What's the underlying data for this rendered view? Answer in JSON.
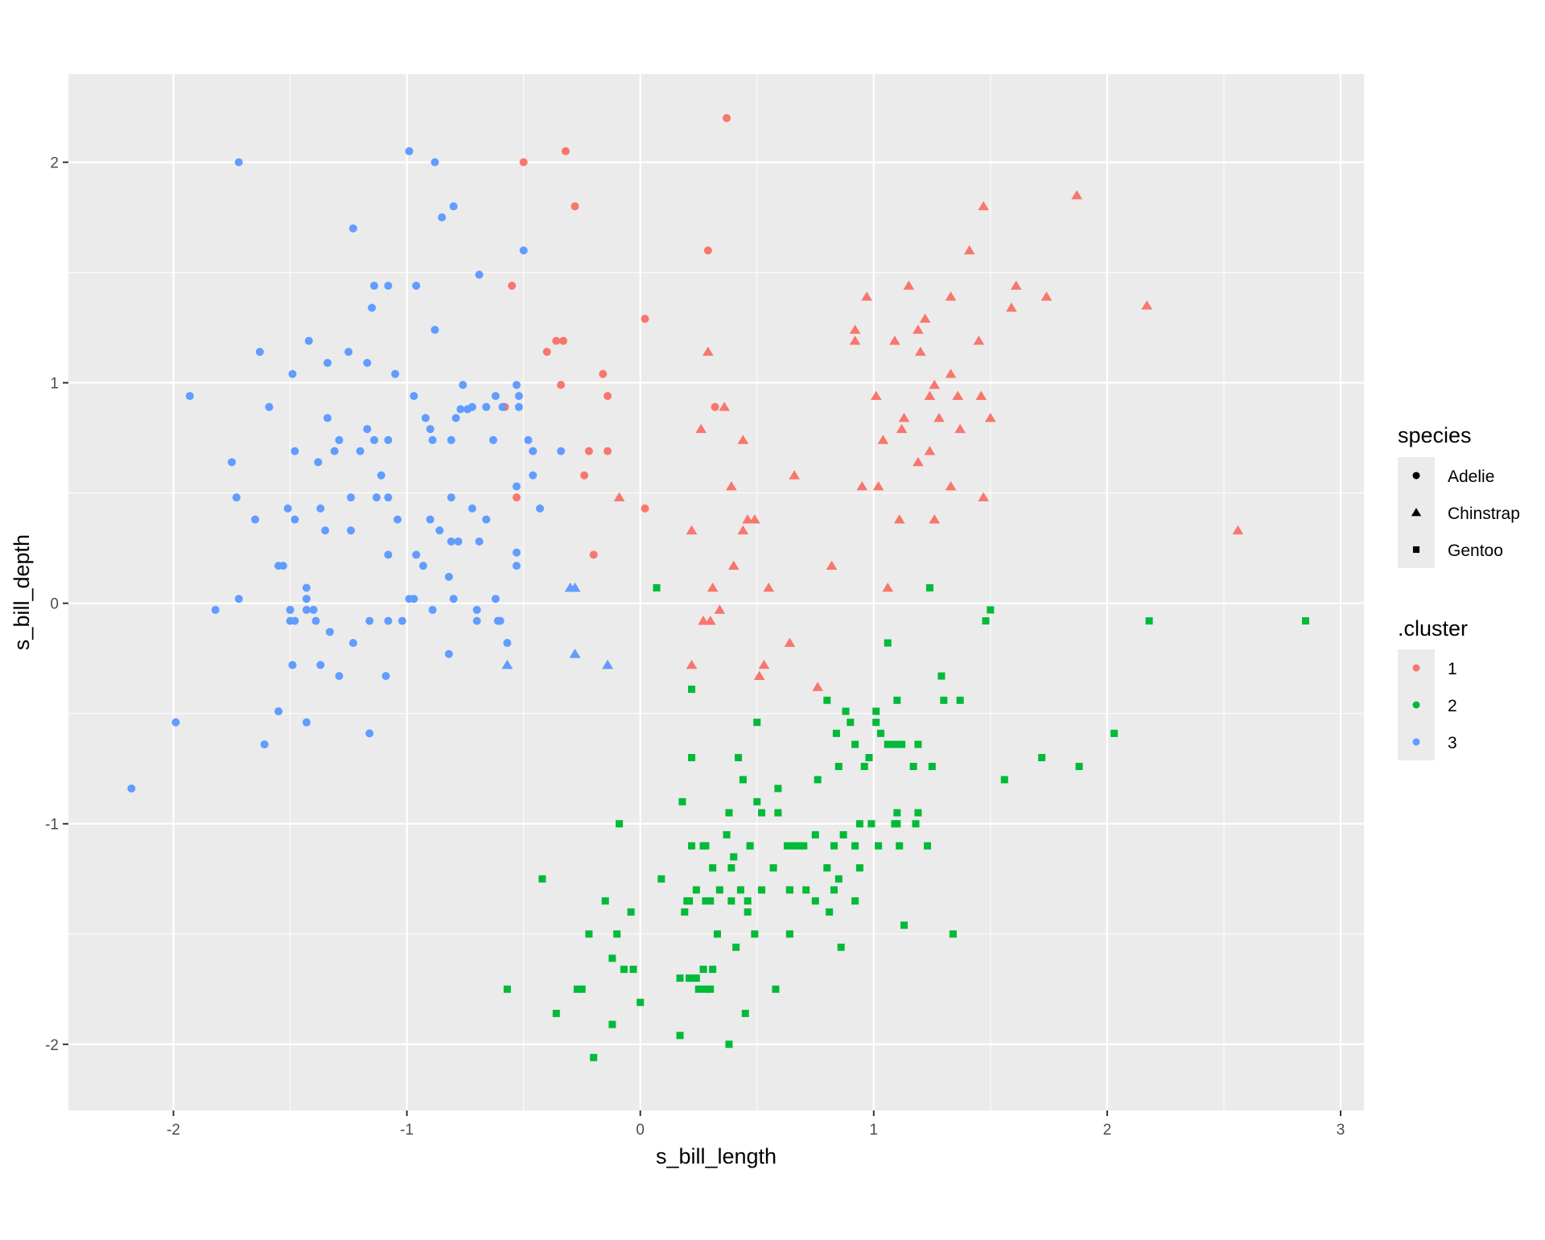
{
  "chart_data": {
    "type": "scatter",
    "xlabel": "s_bill_length",
    "ylabel": "s_bill_depth",
    "xlim": [
      -2.45,
      3.1
    ],
    "ylim": [
      -2.3,
      2.4
    ],
    "xticks": [
      -2,
      -1,
      0,
      1,
      2,
      3
    ],
    "yticks": [
      -2,
      -1,
      0,
      1,
      2
    ],
    "x_tick_labels": [
      "-2",
      "-1",
      "0",
      "1",
      "2",
      "3"
    ],
    "y_tick_labels": [
      "-2",
      "-1",
      "0",
      "1",
      "2"
    ],
    "grid": true,
    "legend_position": "right",
    "legends": [
      {
        "title": "species",
        "aesthetic": "shape",
        "entries": [
          {
            "label": "Adelie",
            "shape": "circle"
          },
          {
            "label": "Chinstrap",
            "shape": "triangle"
          },
          {
            "label": "Gentoo",
            "shape": "square"
          }
        ]
      },
      {
        "title": ".cluster",
        "aesthetic": "color",
        "entries": [
          {
            "label": "1",
            "color": "#F8766D"
          },
          {
            "label": "2",
            "color": "#00BA38"
          },
          {
            "label": "3",
            "color": "#619CFF"
          }
        ]
      }
    ],
    "series": [
      {
        "species": "Adelie",
        "cluster": "1",
        "shape": "circle",
        "color": "#F8766D",
        "x": [
          0.37,
          -0.5,
          -0.32,
          -0.28,
          0.29,
          -0.55,
          0.02,
          -0.4,
          -0.36,
          -0.33,
          -0.16,
          -0.14,
          -0.34,
          -0.58,
          -0.46,
          -0.53,
          -0.14,
          -0.22,
          -0.24,
          0.32,
          0.02,
          -0.2
        ],
        "y": [
          2.2,
          2.0,
          2.05,
          1.8,
          1.6,
          1.44,
          1.29,
          1.14,
          1.19,
          1.19,
          1.04,
          0.94,
          0.99,
          0.89,
          0.69,
          0.48,
          0.69,
          0.69,
          0.58,
          0.89,
          0.43,
          0.22
        ]
      },
      {
        "species": "Chinstrap",
        "cluster": "1",
        "shape": "triangle",
        "color": "#F8766D",
        "x": [
          1.87,
          1.47,
          1.41,
          2.17,
          1.15,
          0.97,
          1.33,
          1.61,
          1.74,
          1.59,
          0.92,
          0.92,
          1.09,
          1.22,
          1.19,
          1.2,
          1.45,
          0.29,
          1.33,
          1.26,
          1.01,
          1.24,
          1.36,
          1.46,
          1.13,
          1.12,
          1.28,
          1.37,
          1.5,
          1.04,
          1.24,
          0.36,
          0.26,
          0.44,
          1.19,
          0.39,
          0.66,
          0.95,
          1.02,
          1.33,
          1.47,
          -0.09,
          0.46,
          0.49,
          0.44,
          1.11,
          1.26,
          0.22,
          2.56,
          0.4,
          0.82,
          0.31,
          0.55,
          1.06,
          0.34,
          0.27,
          0.3,
          0.64,
          0.22,
          0.53,
          0.51,
          0.76,
          -0.28,
          -0.3,
          -0.28,
          -0.14,
          -0.57
        ],
        "y": [
          1.85,
          1.8,
          1.6,
          1.35,
          1.44,
          1.39,
          1.39,
          1.44,
          1.39,
          1.34,
          1.24,
          1.19,
          1.19,
          1.29,
          1.24,
          1.14,
          1.19,
          1.14,
          1.04,
          0.99,
          0.94,
          0.94,
          0.94,
          0.94,
          0.84,
          0.79,
          0.84,
          0.79,
          0.84,
          0.74,
          0.69,
          0.89,
          0.79,
          0.74,
          0.64,
          0.53,
          0.58,
          0.53,
          0.53,
          0.53,
          0.48,
          0.48,
          0.38,
          0.38,
          0.33,
          0.38,
          0.38,
          0.33,
          0.33,
          0.17,
          0.17,
          0.07,
          0.07,
          0.07,
          -0.03,
          -0.08,
          -0.08,
          -0.18,
          -0.28,
          -0.28,
          -0.33,
          -0.38,
          0.07,
          0.07,
          -0.23,
          -0.28,
          -0.28
        ]
      },
      {
        "species": "Adelie",
        "cluster": "3",
        "shape": "circle",
        "color": "#619CFF",
        "x": [
          -1.72,
          -0.99,
          -0.88,
          -0.8,
          -0.85,
          -1.23,
          -0.5,
          -0.69,
          -1.14,
          -1.08,
          -0.96,
          -1.15,
          -0.88,
          -1.42,
          -1.63,
          -1.25,
          -1.17,
          -1.34,
          -1.49,
          -1.05,
          -1.93,
          -1.59,
          -0.97,
          -0.92,
          -0.9,
          -0.79,
          -0.62,
          -0.66,
          -0.59,
          -0.52,
          -0.53,
          -0.52,
          -0.76,
          -0.72,
          -1.34,
          -1.17,
          -1.14,
          -1.08,
          -1.29,
          -1.31,
          -1.38,
          -1.48,
          -1.2,
          -1.11,
          -0.89,
          -0.81,
          -0.63,
          -0.48,
          -0.46,
          -0.34,
          -1.75,
          -1.13,
          -1.24,
          -1.08,
          -1.04,
          -0.81,
          -0.86,
          -0.53,
          -0.46,
          -0.43,
          -1.73,
          -1.65,
          -1.51,
          -1.48,
          -1.37,
          -1.35,
          -1.24,
          -0.9,
          -0.72,
          -0.66,
          -0.81,
          -0.78,
          -0.69,
          -0.53,
          -1.53,
          -1.55,
          -1.08,
          -0.96,
          -0.93,
          -0.53,
          -0.82,
          -1.43,
          -1.43,
          -0.99,
          -0.97,
          -0.8,
          -0.62,
          -1.72,
          -1.82,
          -1.5,
          -1.48,
          -1.43,
          -1.4,
          -1.39,
          -0.89,
          -0.7,
          -0.61,
          -1.5,
          -1.33,
          -1.16,
          -1.08,
          -1.02,
          -0.7,
          -0.6,
          -0.57,
          -1.23,
          -0.82,
          -1.49,
          -1.37,
          -1.29,
          -1.09,
          -1.55,
          -1.43,
          -1.99,
          -1.16,
          -1.61,
          -2.18,
          -0.77,
          -0.74
        ],
        "y": [
          2.0,
          2.05,
          2.0,
          1.8,
          1.75,
          1.7,
          1.6,
          1.49,
          1.44,
          1.44,
          1.44,
          1.34,
          1.24,
          1.19,
          1.14,
          1.14,
          1.09,
          1.09,
          1.04,
          1.04,
          0.94,
          0.89,
          0.94,
          0.84,
          0.79,
          0.84,
          0.94,
          0.89,
          0.89,
          0.94,
          0.99,
          0.89,
          0.99,
          0.89,
          0.84,
          0.79,
          0.74,
          0.74,
          0.74,
          0.69,
          0.64,
          0.69,
          0.69,
          0.58,
          0.74,
          0.74,
          0.74,
          0.74,
          0.58,
          0.69,
          0.64,
          0.48,
          0.48,
          0.48,
          0.38,
          0.48,
          0.33,
          0.53,
          0.69,
          0.43,
          0.48,
          0.38,
          0.43,
          0.38,
          0.43,
          0.33,
          0.33,
          0.38,
          0.43,
          0.38,
          0.28,
          0.28,
          0.28,
          0.23,
          0.17,
          0.17,
          0.22,
          0.22,
          0.17,
          0.17,
          0.12,
          0.07,
          0.02,
          0.02,
          0.02,
          0.02,
          0.02,
          0.02,
          -0.03,
          -0.03,
          -0.08,
          -0.03,
          -0.03,
          -0.08,
          -0.03,
          -0.03,
          -0.08,
          -0.08,
          -0.13,
          -0.08,
          -0.08,
          -0.08,
          -0.08,
          -0.08,
          -0.18,
          -0.18,
          -0.23,
          -0.28,
          -0.28,
          -0.33,
          -0.33,
          -0.49,
          -0.54,
          -0.54,
          -0.59,
          -0.64,
          -0.84,
          0.88,
          0.88
        ]
      },
      {
        "species": "Chinstrap",
        "cluster": "3",
        "shape": "triangle",
        "color": "#619CFF",
        "x": [
          -0.28,
          -0.3,
          -0.28,
          -0.14,
          -0.57
        ],
        "y": [
          0.07,
          0.07,
          -0.23,
          -0.28,
          -0.28
        ]
      },
      {
        "species": "Gentoo",
        "cluster": "2",
        "shape": "square",
        "color": "#00BA38",
        "x": [
          0.07,
          1.24,
          1.5,
          1.48,
          2.18,
          2.85,
          1.06,
          1.29,
          0.22,
          1.3,
          1.37,
          0.8,
          1.1,
          0.88,
          1.01,
          0.9,
          0.84,
          1.01,
          0.92,
          1.03,
          2.03,
          0.5,
          1.06,
          1.09,
          1.12,
          1.19,
          0.98,
          0.22,
          0.42,
          0.96,
          1.17,
          1.25,
          1.72,
          1.88,
          0.44,
          0.76,
          0.59,
          0.85,
          1.56,
          0.18,
          0.5,
          0.52,
          0.59,
          0.38,
          0.99,
          1.09,
          1.19,
          1.18,
          1.1,
          1.1,
          0.94,
          0.87,
          0.83,
          0.75,
          0.47,
          0.28,
          0.37,
          0.63,
          0.66,
          0.68,
          0.7,
          0.92,
          1.02,
          1.11,
          1.23,
          0.22,
          0.27,
          0.47,
          0.4,
          0.39,
          0.31,
          0.57,
          0.8,
          0.94,
          0.09,
          -0.42,
          -0.09,
          0.43,
          0.71,
          0.85,
          0.34,
          0.52,
          0.46,
          0.3,
          0.21,
          0.24,
          0.28,
          0.64,
          0.75,
          0.83,
          0.92,
          0.64,
          1.13,
          -0.15,
          0.19,
          0.39,
          0.46,
          0.49,
          -0.22,
          -0.1,
          0.33,
          0.81,
          0.86,
          0.64,
          0.41,
          -0.12,
          -0.07,
          -0.03,
          0.27,
          0.31,
          0.17,
          0.21,
          0.24,
          0.3,
          0.58,
          1.34,
          -0.25,
          -0.27,
          -0.57,
          0.25,
          0.28,
          0.0,
          -0.36,
          0.45,
          -0.12,
          0.17,
          0.38,
          -0.2,
          0.2,
          -0.04,
          0.21
        ],
        "y": [
          0.07,
          0.07,
          -0.03,
          -0.08,
          -0.08,
          -0.08,
          -0.18,
          -0.33,
          -0.39,
          -0.44,
          -0.44,
          -0.44,
          -0.44,
          -0.49,
          -0.49,
          -0.54,
          -0.59,
          -0.54,
          -0.64,
          -0.59,
          -0.59,
          -0.54,
          -0.64,
          -0.64,
          -0.64,
          -0.64,
          -0.7,
          -0.7,
          -0.7,
          -0.74,
          -0.74,
          -0.74,
          -0.7,
          -0.74,
          -0.8,
          -0.8,
          -0.84,
          -0.74,
          -0.8,
          -0.9,
          -0.9,
          -0.95,
          -0.95,
          -0.95,
          -1.0,
          -1.0,
          -0.95,
          -1.0,
          -0.95,
          -1.0,
          -1.0,
          -1.05,
          -1.1,
          -1.05,
          -1.1,
          -1.1,
          -1.05,
          -1.1,
          -1.1,
          -1.1,
          -1.1,
          -1.1,
          -1.1,
          -1.1,
          -1.1,
          -1.1,
          -1.1,
          -1.1,
          -1.15,
          -1.2,
          -1.2,
          -1.2,
          -1.2,
          -1.2,
          -1.25,
          -1.25,
          -1.0,
          -1.3,
          -1.3,
          -1.25,
          -1.3,
          -1.3,
          -1.35,
          -1.35,
          -1.35,
          -1.3,
          -1.35,
          -1.3,
          -1.35,
          -1.3,
          -1.35,
          -1.3,
          -1.46,
          -1.35,
          -1.4,
          -1.35,
          -1.4,
          -1.5,
          -1.5,
          -1.5,
          -1.5,
          -1.4,
          -1.56,
          -1.5,
          -1.56,
          -1.61,
          -1.66,
          -1.66,
          -1.66,
          -1.66,
          -1.7,
          -1.7,
          -1.7,
          -1.75,
          -1.75,
          -1.5,
          -1.75,
          -1.75,
          -1.75,
          -1.75,
          -1.75,
          -1.81,
          -1.86,
          -1.86,
          -1.91,
          -1.96,
          -2.0,
          -2.06,
          -1.35,
          -1.4,
          -1.7
        ]
      }
    ]
  }
}
